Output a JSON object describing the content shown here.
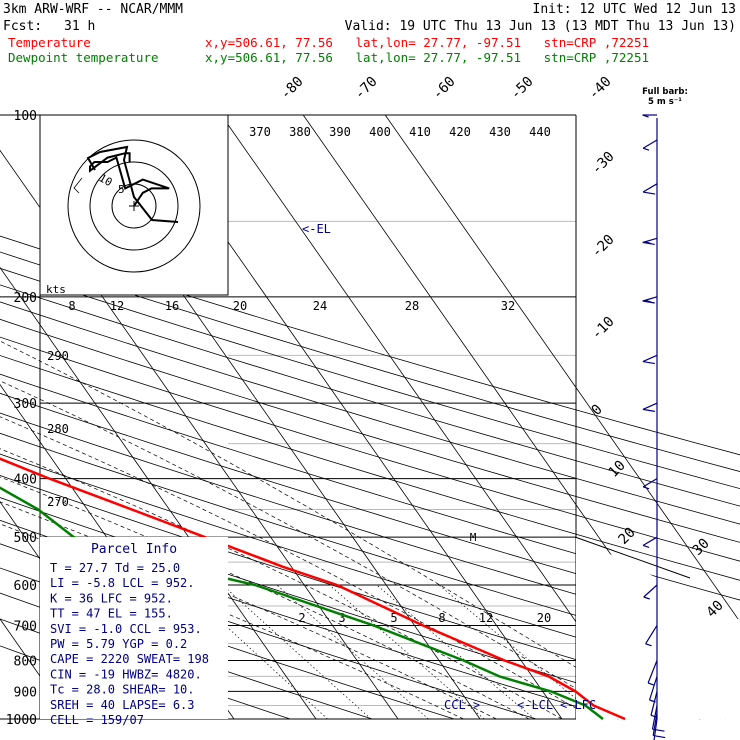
{
  "header": {
    "model": "3km ARW-WRF -- NCAR/MMM",
    "init": "Init: 12 UTC Wed 12 Jun 13",
    "fcst_label": "Fcst:",
    "fcst_value": "31 h",
    "valid": "Valid: 19 UTC Thu 13 Jun 13 (13 MDT Thu 13 Jun 13)"
  },
  "legend": {
    "temperature": {
      "label": "Temperature",
      "info": "x,y=506.61, 77.56   lat,lon= 27.77, -97.51   stn=CRP ,72251",
      "color": "#ff0000"
    },
    "dewpoint": {
      "label": "Dewpoint temperature",
      "info": "x,y=506.61, 77.56   lat,lon= 27.77, -97.51   stn=CRP ,72251",
      "color": "#008000"
    }
  },
  "barb_key": {
    "line1": "Full barb:",
    "line2": "5 m s⁻¹"
  },
  "hodograph": {
    "unit": "kts",
    "ring_labels": [
      "5",
      "10"
    ],
    "points": [
      [
        0,
        0
      ],
      [
        2,
        -3
      ],
      [
        4,
        -4
      ],
      [
        8,
        -4
      ],
      [
        2,
        -6
      ],
      [
        -2,
        -4
      ],
      [
        -4,
        -11
      ],
      [
        -6,
        -10
      ],
      [
        -9,
        -10
      ],
      [
        -10,
        -9
      ],
      [
        -10,
        -8
      ],
      [
        -6,
        -11
      ],
      [
        -2,
        -12
      ],
      [
        -1,
        -12
      ],
      [
        -1,
        -10
      ]
    ]
  },
  "parcel_info": {
    "title": "Parcel Info",
    "rows": [
      "T   =   27.7  Td =  25.0",
      "LI  =   -5.8  LCL =  952.",
      "K   =     36  LFC =  952.",
      "TT  =     47  EL  =  155.",
      "SVI =   -1.0  CCL =  953.",
      "PW  =   5.79  YGP =   0.2",
      "CAPE =  2220  SWEAT=  198",
      "CIN =    -19  HWBZ= 4820.",
      "Tc  =   28.0  SHEAR=  10.",
      "SREH =    40  LAPSE=  6.3",
      "CELL = 159/07"
    ]
  },
  "levels": {
    "lcl": "<-LCL",
    "lfc": "<-LFC",
    "ccl": "CCL->",
    "el": "<-EL"
  },
  "chart_data": {
    "type": "line",
    "title": "",
    "xlabel": "",
    "ylabel": "",
    "pressure_ticks": [
      "100",
      "200",
      "300",
      "400",
      "500",
      "600",
      "700",
      "800",
      "900",
      "1000"
    ],
    "pressure_values": [
      100,
      200,
      300,
      400,
      500,
      600,
      700,
      800,
      900,
      1000
    ],
    "isotherm_labels_top": [
      "-80",
      "-70",
      "-60",
      "-50",
      "-40"
    ],
    "isotherm_labels_right": [
      "-30",
      "-20",
      "-10",
      "0",
      "10",
      "20",
      "30",
      "40"
    ],
    "theta_labels": [
      "370",
      "380",
      "390",
      "400",
      "410",
      "420",
      "430",
      "440"
    ],
    "dry_adiabat_labels_left": [
      "290",
      "280",
      "270"
    ],
    "mixing_ratio_labels_top": [
      "8",
      "12",
      "16",
      "20",
      "24",
      "28",
      "32"
    ],
    "mixing_ratio_labels_bottom": [
      "2",
      "3",
      "5",
      "8",
      "12",
      "20"
    ],
    "moist_marker": "M",
    "series": [
      {
        "name": "Temperature",
        "color": "#ff0000",
        "points": [
          [
            100,
            -78
          ],
          [
            110,
            -78
          ],
          [
            125,
            -75
          ],
          [
            140,
            -71
          ],
          [
            160,
            -68
          ],
          [
            180,
            -64
          ],
          [
            200,
            -60
          ],
          [
            240,
            -52
          ],
          [
            280,
            -44
          ],
          [
            320,
            -36
          ],
          [
            360,
            -28
          ],
          [
            400,
            -22
          ],
          [
            440,
            -16
          ],
          [
            500,
            -8
          ],
          [
            560,
            -1
          ],
          [
            600,
            4
          ],
          [
            700,
            11
          ],
          [
            800,
            18
          ],
          [
            850,
            22
          ],
          [
            900,
            24
          ],
          [
            950,
            25
          ],
          [
            1000,
            27.7
          ]
        ]
      },
      {
        "name": "Dewpoint temperature",
        "color": "#008000",
        "points": [
          [
            100,
            -86
          ],
          [
            130,
            -90
          ],
          [
            155,
            -95
          ],
          [
            170,
            -88
          ],
          [
            200,
            -82
          ],
          [
            240,
            -70
          ],
          [
            280,
            -58
          ],
          [
            320,
            -48
          ],
          [
            360,
            -38
          ],
          [
            400,
            -30
          ],
          [
            450,
            -26
          ],
          [
            500,
            -24
          ],
          [
            560,
            -14
          ],
          [
            600,
            -6
          ],
          [
            700,
            5
          ],
          [
            800,
            13
          ],
          [
            850,
            16
          ],
          [
            900,
            21
          ],
          [
            950,
            24
          ],
          [
            1000,
            25
          ]
        ]
      }
    ],
    "wind_profile": [
      {
        "p": 1000,
        "speed_ms": 8,
        "dir": 160
      },
      {
        "p": 975,
        "speed_ms": 9,
        "dir": 165
      },
      {
        "p": 950,
        "speed_ms": 8,
        "dir": 170
      },
      {
        "p": 900,
        "speed_ms": 6,
        "dir": 180
      },
      {
        "p": 850,
        "speed_ms": 4,
        "dir": 190
      },
      {
        "p": 800,
        "speed_ms": 3,
        "dir": 200
      },
      {
        "p": 700,
        "speed_ms": 3,
        "dir": 220
      },
      {
        "p": 600,
        "speed_ms": 4,
        "dir": 240
      },
      {
        "p": 500,
        "speed_ms": 5,
        "dir": 250
      },
      {
        "p": 400,
        "speed_ms": 7,
        "dir": 250
      },
      {
        "p": 300,
        "speed_ms": 10,
        "dir": 255
      },
      {
        "p": 250,
        "speed_ms": 12,
        "dir": 255
      },
      {
        "p": 200,
        "speed_ms": 15,
        "dir": 260
      },
      {
        "p": 160,
        "speed_ms": 16,
        "dir": 260
      },
      {
        "p": 130,
        "speed_ms": 12,
        "dir": 250
      },
      {
        "p": 110,
        "speed_ms": 5,
        "dir": 250
      },
      {
        "p": 100,
        "speed_ms": 3,
        "dir": 270
      }
    ]
  }
}
